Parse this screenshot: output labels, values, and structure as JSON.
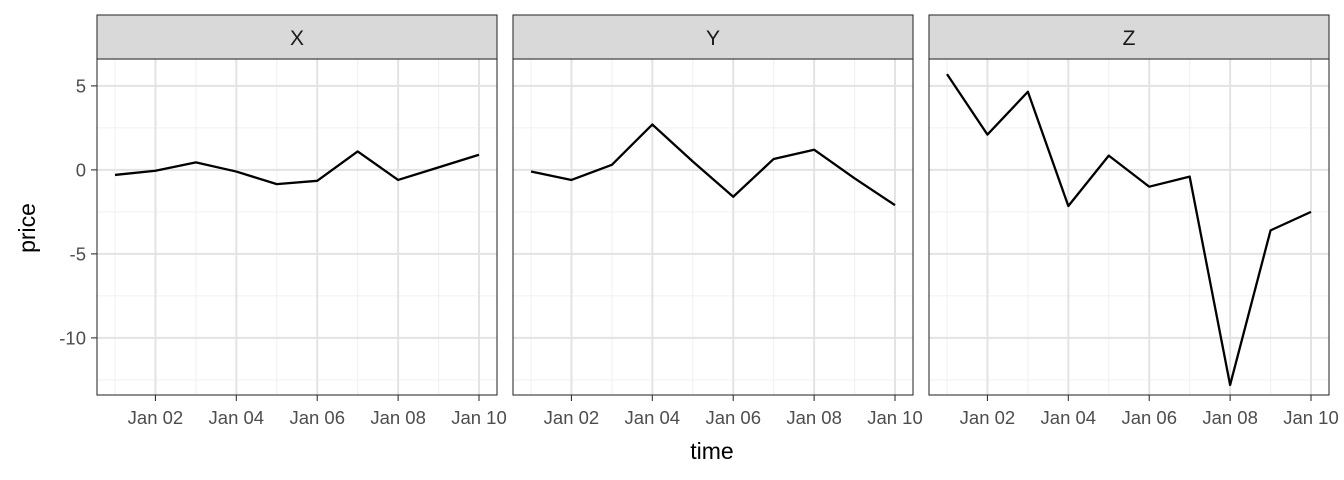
{
  "chart_data": {
    "type": "line",
    "facet_type": "small-multiples",
    "xlabel": "time",
    "ylabel": "price",
    "x": [
      "Jan 01",
      "Jan 02",
      "Jan 03",
      "Jan 04",
      "Jan 05",
      "Jan 06",
      "Jan 07",
      "Jan 08",
      "Jan 09",
      "Jan 10"
    ],
    "x_tick_labels": [
      "Jan 02",
      "Jan 04",
      "Jan 06",
      "Jan 08",
      "Jan 10"
    ],
    "y_ticks": [
      5,
      0,
      -5,
      -10
    ],
    "y_tick_labels": [
      "5",
      "0",
      "-5",
      "-10"
    ],
    "ylim": [
      -13.4,
      6.6
    ],
    "grid": true,
    "line_color": "#000000",
    "panels": [
      {
        "label": "X",
        "values": [
          -0.3,
          -0.05,
          0.45,
          -0.1,
          -0.85,
          -0.65,
          1.1,
          -0.6,
          0.15,
          0.9
        ]
      },
      {
        "label": "Y",
        "values": [
          -0.1,
          -0.6,
          0.3,
          2.7,
          0.5,
          -1.6,
          0.65,
          1.2,
          -0.5,
          -2.1
        ]
      },
      {
        "label": "Z",
        "values": [
          5.7,
          2.1,
          4.65,
          -2.15,
          0.85,
          -1.0,
          -0.4,
          -12.8,
          -3.6,
          -2.5
        ]
      }
    ]
  }
}
